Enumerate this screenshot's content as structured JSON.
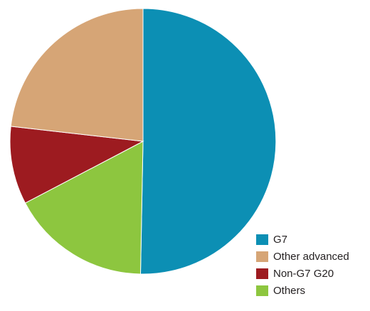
{
  "chart_data": {
    "type": "pie",
    "title": "",
    "slices": [
      {
        "label": "G7",
        "value": 50.3,
        "color": "#0c8fb4"
      },
      {
        "label": "Others",
        "value": 17.0,
        "color": "#8dc63f"
      },
      {
        "label": "Non-G7 G20",
        "value": 9.5,
        "color": "#9d1b20"
      },
      {
        "label": "Other advanced",
        "value": 23.2,
        "color": "#d6a576"
      }
    ],
    "legend": {
      "position": "bottom-right",
      "items": [
        {
          "label": "G7",
          "color": "#0c8fb4"
        },
        {
          "label": "Other advanced",
          "color": "#d6a576"
        },
        {
          "label": "Non-G7 G20",
          "color": "#9d1b20"
        },
        {
          "label": "Others",
          "color": "#8dc63f"
        }
      ]
    }
  }
}
